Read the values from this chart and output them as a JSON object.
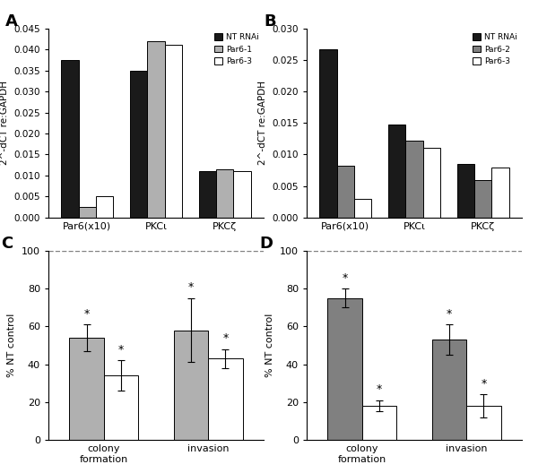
{
  "panel_A": {
    "title": "A",
    "groups": [
      "Par6(x10)",
      "PKCι",
      "PKCζ"
    ],
    "series": [
      "NT RNAi",
      "Par6-1",
      "Par6-3"
    ],
    "colors": [
      "#1a1a1a",
      "#b0b0b0",
      "#ffffff"
    ],
    "values": [
      [
        0.0375,
        0.0025,
        0.005
      ],
      [
        0.035,
        0.042,
        0.041
      ],
      [
        0.011,
        0.0115,
        0.011
      ]
    ],
    "ylim": [
      0,
      0.045
    ],
    "yticks": [
      0,
      0.005,
      0.01,
      0.015,
      0.02,
      0.025,
      0.03,
      0.035,
      0.04,
      0.045
    ],
    "ylabel": "2^-dCT re:GAPDH"
  },
  "panel_B": {
    "title": "B",
    "groups": [
      "Par6(x10)",
      "PKCι",
      "PKCζ"
    ],
    "series": [
      "NT RNAi",
      "Par6-2",
      "Par6-3"
    ],
    "colors": [
      "#1a1a1a",
      "#808080",
      "#ffffff"
    ],
    "values": [
      [
        0.0267,
        0.0082,
        0.003
      ],
      [
        0.0148,
        0.0122,
        0.011
      ],
      [
        0.0085,
        0.006,
        0.008
      ]
    ],
    "ylim": [
      0,
      0.03
    ],
    "yticks": [
      0,
      0.005,
      0.01,
      0.015,
      0.02,
      0.025,
      0.03
    ],
    "ylabel": "2^-dCT re:GAPDH"
  },
  "panel_C": {
    "title": "C",
    "groups": [
      "colony\nformation",
      "invasion"
    ],
    "series": [
      "Par6-1",
      "Par6-3"
    ],
    "colors": [
      "#b0b0b0",
      "#ffffff"
    ],
    "values": [
      [
        54,
        34
      ],
      [
        58,
        43
      ]
    ],
    "errors": [
      [
        7,
        8
      ],
      [
        17,
        5
      ]
    ],
    "ylim": [
      0,
      100
    ],
    "yticks": [
      0,
      20,
      40,
      60,
      80,
      100
    ],
    "ylabel": "% NT control",
    "significance": [
      [
        true,
        true
      ],
      [
        true,
        true
      ]
    ]
  },
  "panel_D": {
    "title": "D",
    "groups": [
      "colony\nformation",
      "invasion"
    ],
    "series": [
      "Par6-2",
      "Par6-3"
    ],
    "colors": [
      "#808080",
      "#ffffff"
    ],
    "values": [
      [
        75,
        18
      ],
      [
        53,
        18
      ]
    ],
    "errors": [
      [
        5,
        3
      ],
      [
        8,
        6
      ]
    ],
    "ylim": [
      0,
      100
    ],
    "yticks": [
      0,
      20,
      40,
      60,
      80,
      100
    ],
    "ylabel": "% NT control",
    "significance": [
      [
        true,
        true
      ],
      [
        true,
        true
      ]
    ]
  }
}
